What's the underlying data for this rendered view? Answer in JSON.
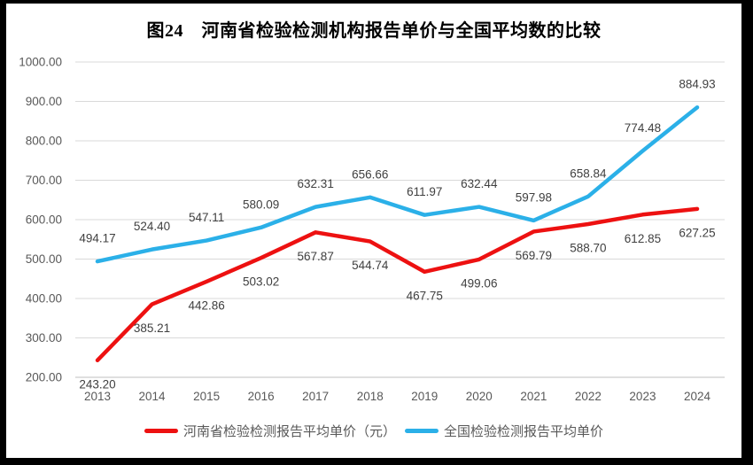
{
  "title": "图24　河南省检验检测机构报告单价与全国平均数的比较",
  "chart_data": {
    "type": "line",
    "title": "图24　河南省检验检测机构报告单价与全国平均数的比较",
    "categories": [
      "2013",
      "2014",
      "2015",
      "2016",
      "2017",
      "2018",
      "2019",
      "2020",
      "2021",
      "2022",
      "2023",
      "2024"
    ],
    "series": [
      {
        "name": "河南省检验检测报告平均单价（元）",
        "color": "#ED1111",
        "label_position": "below",
        "values": [
          243.2,
          385.21,
          442.86,
          503.02,
          567.87,
          544.74,
          467.75,
          499.06,
          569.79,
          588.7,
          612.85,
          627.25
        ]
      },
      {
        "name": "全国检验检测报告平均单价",
        "color": "#2BB0E8",
        "label_position": "above",
        "values": [
          494.17,
          524.4,
          547.11,
          580.09,
          632.31,
          656.66,
          611.97,
          632.44,
          597.98,
          658.84,
          774.48,
          884.93
        ]
      }
    ],
    "xlabel": "",
    "ylabel": "",
    "ylim": [
      200,
      1000
    ],
    "ytick_step": 100,
    "ytick_labels": [
      "200.00",
      "300.00",
      "400.00",
      "500.00",
      "600.00",
      "700.00",
      "800.00",
      "900.00",
      "1000.00"
    ],
    "data_label_decimals": 2,
    "grid": true,
    "legend_position": "bottom"
  },
  "style": {
    "gridline_color": "#D9D9D9",
    "axis_line_color": "#BFBFBF",
    "tick_label_color": "#595959",
    "data_label_color": "#404040",
    "background_color": "#FFFFFF",
    "frame_color": "#000000"
  }
}
